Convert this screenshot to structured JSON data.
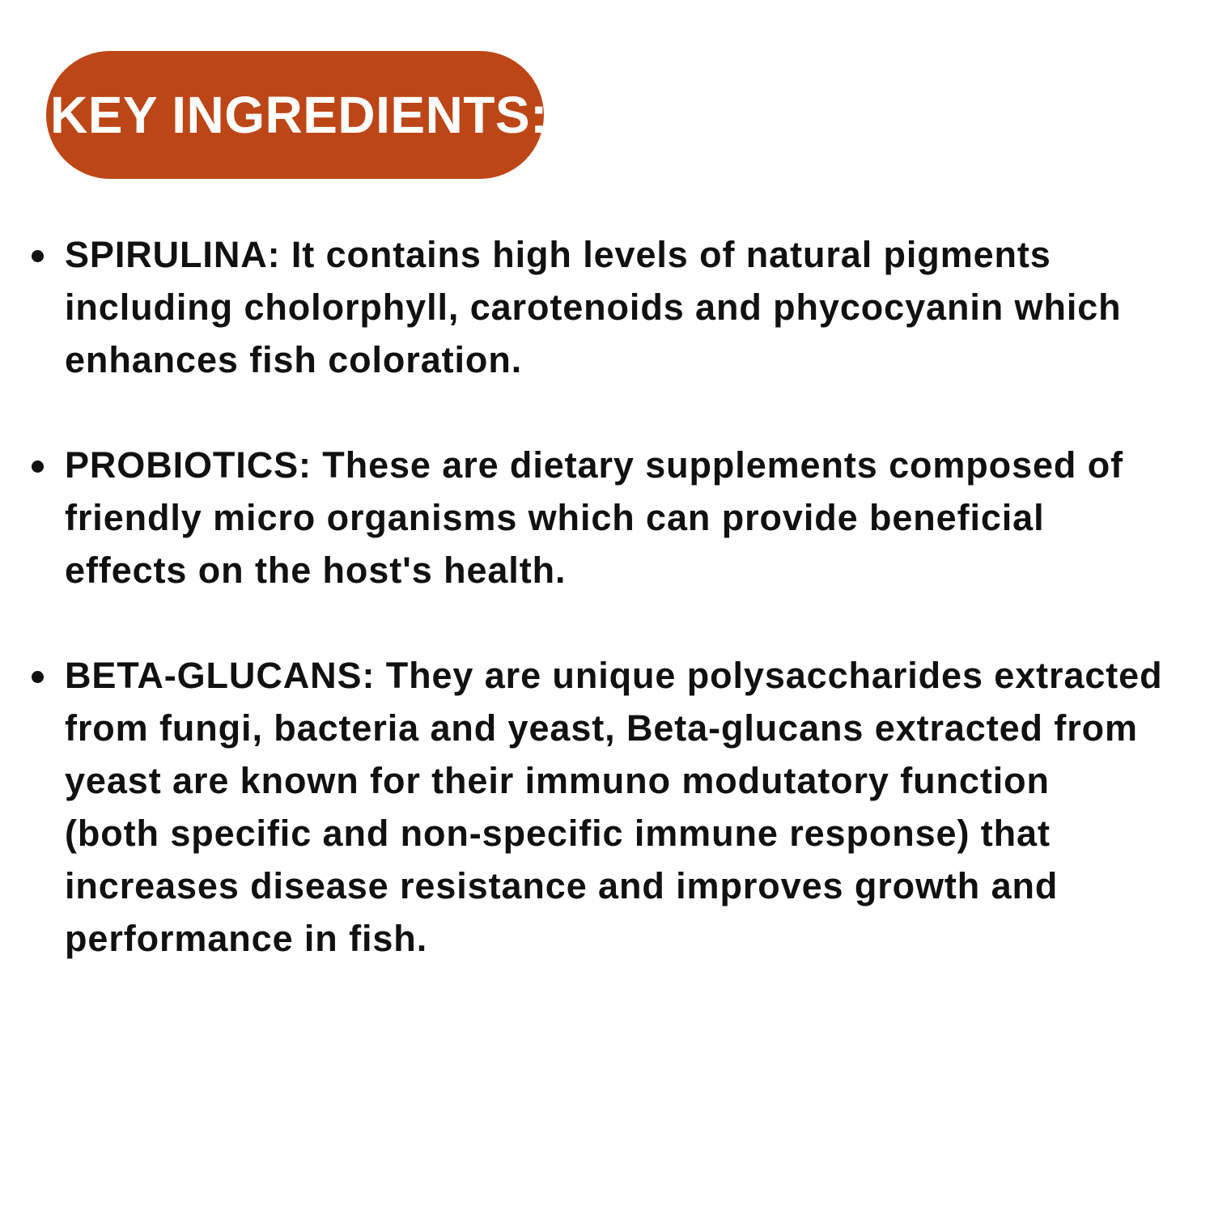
{
  "header": {
    "title": "KEY INGREDIENTS:",
    "badge_color": "#bd4616"
  },
  "items": [
    {
      "lines": [
        "SPIRULINA: It contains high levels of natural pigments",
        "including cholorphyll, carotenoids and phycocyanin which",
        "enhances fish coloration."
      ]
    },
    {
      "lines": [
        "PROBIOTICS: These are dietary supplements composed of",
        "friendly micro organisms which can provide beneficial",
        "effects on the host's health."
      ]
    },
    {
      "lines": [
        "BETA-GLUCANS: They are unique polysaccharides extracted",
        "from fungi, bacteria and yeast, Beta-glucans extracted from",
        "yeast are known for their immuno modutatory function",
        "(both specific and non-specific immune response) that",
        "increases disease resistance and improves growth and",
        "performance in fish."
      ]
    }
  ]
}
